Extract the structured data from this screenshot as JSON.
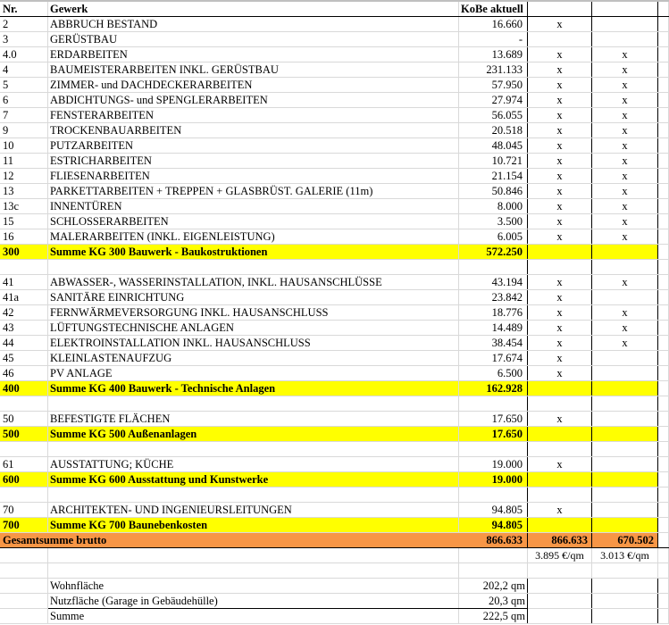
{
  "header": {
    "nr": "Nr.",
    "gewerk": "Gewerk",
    "kobe": "KoBe aktuell",
    "c3": "",
    "c4": ""
  },
  "rows": [
    {
      "type": "item",
      "nr": "2",
      "gewerk": "ABBRUCH BESTAND",
      "kobe": "16.660",
      "c3": "x",
      "c4": ""
    },
    {
      "type": "item",
      "nr": "3",
      "gewerk": "GERÜSTBAU",
      "kobe": "-",
      "c3": "",
      "c4": ""
    },
    {
      "type": "item",
      "nr": "4.0",
      "gewerk": "ERDARBEITEN",
      "kobe": "13.689",
      "c3": "x",
      "c4": "x"
    },
    {
      "type": "item",
      "nr": "4",
      "gewerk": "BAUMEISTERARBEITEN INKL. GERÜSTBAU",
      "kobe": "231.133",
      "c3": "x",
      "c4": "x"
    },
    {
      "type": "item",
      "nr": "5",
      "gewerk": "ZIMMER- und DACHDECKERARBEITEN",
      "kobe": "57.950",
      "c3": "x",
      "c4": "x"
    },
    {
      "type": "item",
      "nr": "6",
      "gewerk": "ABDICHTUNGS- und SPENGLERARBEITEN",
      "kobe": "27.974",
      "c3": "x",
      "c4": "x"
    },
    {
      "type": "item",
      "nr": "7",
      "gewerk": "FENSTERARBEITEN",
      "kobe": "56.055",
      "c3": "x",
      "c4": "x"
    },
    {
      "type": "item",
      "nr": "9",
      "gewerk": "TROCKENBAUARBEITEN",
      "kobe": "20.518",
      "c3": "x",
      "c4": "x"
    },
    {
      "type": "item",
      "nr": "10",
      "gewerk": "PUTZARBEITEN",
      "kobe": "48.045",
      "c3": "x",
      "c4": "x"
    },
    {
      "type": "item",
      "nr": "11",
      "gewerk": "ESTRICHARBEITEN",
      "kobe": "10.721",
      "c3": "x",
      "c4": "x"
    },
    {
      "type": "item",
      "nr": "12",
      "gewerk": "FLIESENARBEITEN",
      "kobe": "21.154",
      "c3": "x",
      "c4": "x"
    },
    {
      "type": "item",
      "nr": "13",
      "gewerk": "PARKETTARBEITEN + TREPPEN + GLASBRÜST. GALERIE (11m)",
      "kobe": "50.846",
      "c3": "x",
      "c4": "x"
    },
    {
      "type": "item",
      "nr": "13c",
      "gewerk": "INNENTÜREN",
      "kobe": "8.000",
      "c3": "x",
      "c4": "x"
    },
    {
      "type": "item",
      "nr": "15",
      "gewerk": "SCHLOSSERARBEITEN",
      "kobe": "3.500",
      "c3": "x",
      "c4": "x"
    },
    {
      "type": "item",
      "nr": "16",
      "gewerk": "MALERARBEITEN (INKL. EIGENLEISTUNG)",
      "kobe": "6.005",
      "c3": "x",
      "c4": "x"
    },
    {
      "type": "sum",
      "nr": "300",
      "gewerk": "Summe KG 300 Bauwerk - Baukostruktionen",
      "kobe": "572.250",
      "c3": "",
      "c4": ""
    },
    {
      "type": "blank",
      "nr": "",
      "gewerk": "",
      "kobe": "",
      "c3": "",
      "c4": ""
    },
    {
      "type": "item",
      "nr": "41",
      "gewerk": "ABWASSER-, WASSERINSTALLATION, INKL. HAUSANSCHLÜSSE",
      "kobe": "43.194",
      "c3": "x",
      "c4": "x"
    },
    {
      "type": "item",
      "nr": "41a",
      "gewerk": "SANITÄRE EINRICHTUNG",
      "kobe": "23.842",
      "c3": "x",
      "c4": ""
    },
    {
      "type": "item",
      "nr": "42",
      "gewerk": "FERNWÄRMEVERSORGUNG INKL. HAUSANSCHLUSS",
      "kobe": "18.776",
      "c3": "x",
      "c4": "x"
    },
    {
      "type": "item",
      "nr": "43",
      "gewerk": "LÜFTUNGSTECHNISCHE ANLAGEN",
      "kobe": "14.489",
      "c3": "x",
      "c4": "x"
    },
    {
      "type": "item",
      "nr": "44",
      "gewerk": "ELEKTROINSTALLATION INKL. HAUSANSCHLUSS",
      "kobe": "38.454",
      "c3": "x",
      "c4": "x"
    },
    {
      "type": "item",
      "nr": "45",
      "gewerk": "KLEINLASTENAUFZUG",
      "kobe": "17.674",
      "c3": "x",
      "c4": ""
    },
    {
      "type": "item",
      "nr": "46",
      "gewerk": "PV ANLAGE",
      "kobe": "6.500",
      "c3": "x",
      "c4": ""
    },
    {
      "type": "sum",
      "nr": "400",
      "gewerk": "Summe KG 400 Bauwerk - Technische Anlagen",
      "kobe": "162.928",
      "c3": "",
      "c4": ""
    },
    {
      "type": "blank",
      "nr": "",
      "gewerk": "",
      "kobe": "",
      "c3": "",
      "c4": ""
    },
    {
      "type": "item",
      "nr": "50",
      "gewerk": "BEFESTIGTE FLÄCHEN",
      "kobe": "17.650",
      "c3": "x",
      "c4": ""
    },
    {
      "type": "sum",
      "nr": "500",
      "gewerk": "Summe KG 500 Außenanlagen",
      "kobe": "17.650",
      "c3": "",
      "c4": ""
    },
    {
      "type": "blank",
      "nr": "",
      "gewerk": "",
      "kobe": "",
      "c3": "",
      "c4": ""
    },
    {
      "type": "item",
      "nr": "61",
      "gewerk": "AUSSTATTUNG; KÜCHE",
      "kobe": "19.000",
      "c3": "x",
      "c4": ""
    },
    {
      "type": "sum",
      "nr": "600",
      "gewerk": "Summe KG 600 Ausstattung und Kunstwerke",
      "kobe": "19.000",
      "c3": "",
      "c4": ""
    },
    {
      "type": "blank",
      "nr": "",
      "gewerk": "",
      "kobe": "",
      "c3": "",
      "c4": ""
    },
    {
      "type": "item",
      "nr": "70",
      "gewerk": "ARCHITEKTEN- UND INGENIEURSLEITUNGEN",
      "kobe": "94.805",
      "c3": "x",
      "c4": ""
    },
    {
      "type": "sum",
      "nr": "700",
      "gewerk": "Summe KG 700 Baunebenkosten",
      "kobe": "94.805",
      "c3": "",
      "c4": ""
    },
    {
      "type": "total",
      "nr": "Gesamtsumme brutto",
      "gewerk": "",
      "kobe": "866.633",
      "c3": "866.633",
      "c4": "670.502"
    },
    {
      "type": "below",
      "nr": "",
      "gewerk": "",
      "kobe": "",
      "c3": "3.895 €/qm",
      "c4": "3.013 €/qm"
    },
    {
      "type": "below",
      "nr": "",
      "gewerk": "",
      "kobe": "",
      "c3": "",
      "c4": ""
    },
    {
      "type": "area",
      "nr": "",
      "gewerk": "Wohnfläche",
      "kobe": "202,2 qm",
      "c3": "",
      "c4": ""
    },
    {
      "type": "area",
      "nr": "",
      "gewerk": "Nutzfläche (Garage in Gebäudehülle)",
      "kobe": "20,3 qm",
      "c3": "",
      "c4": ""
    },
    {
      "type": "area",
      "nr": "",
      "gewerk": "Summe",
      "kobe": "222,5 qm",
      "c3": "",
      "c4": ""
    }
  ],
  "colors": {
    "sum_row": "#ffff00",
    "total_row": "#f79646",
    "grid": "#d9d9d9"
  }
}
